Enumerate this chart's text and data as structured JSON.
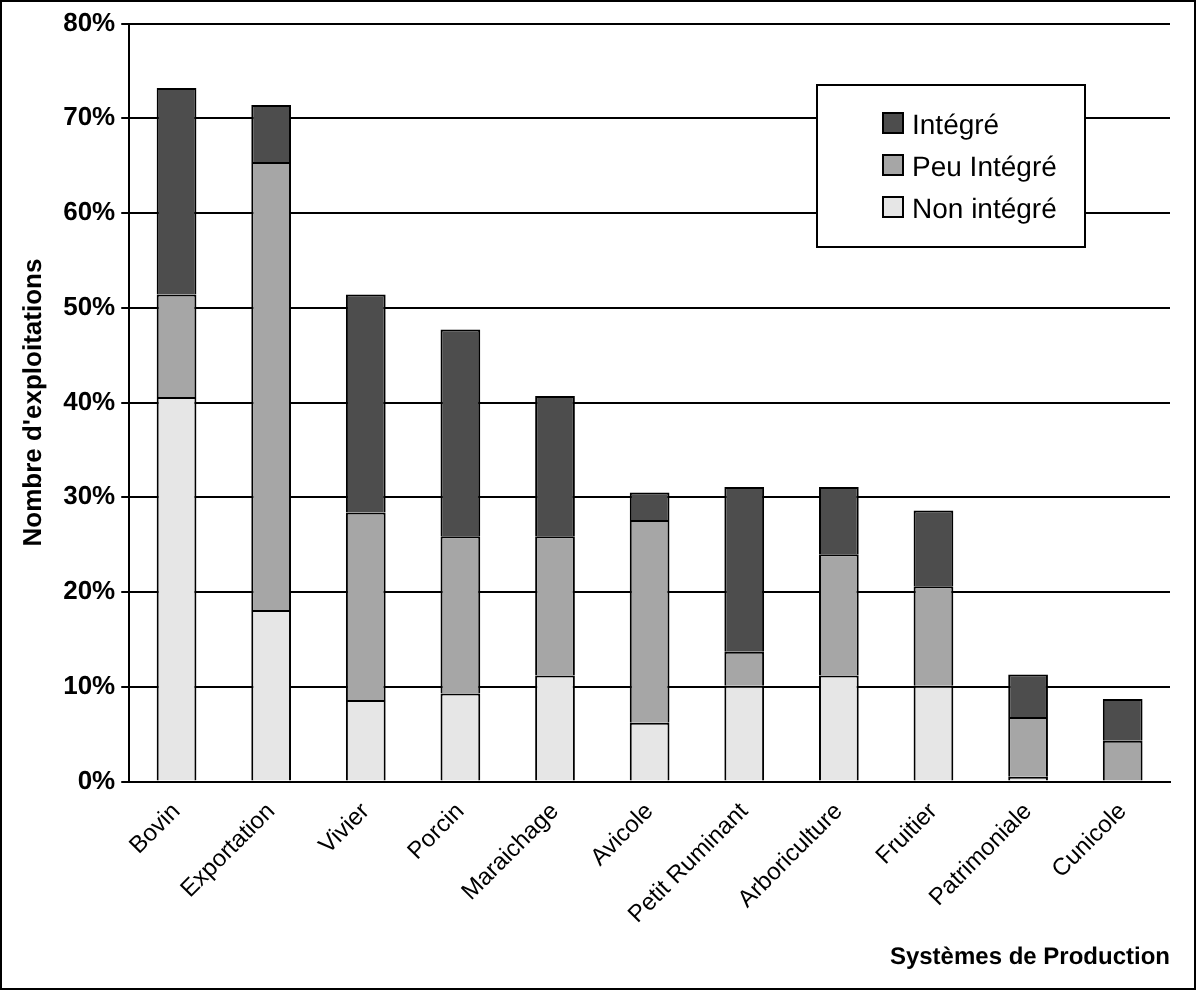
{
  "chart_data": {
    "type": "bar",
    "stacked": true,
    "xlabel": "Systèmes de Production",
    "ylabel": "Nombre d'exploitations",
    "categories": [
      "Bovin",
      "Exportation",
      "Vivier",
      "Porcin",
      "Maraichage",
      "Avicole",
      "Petit Ruminant",
      "Arboriculture",
      "Fruitier",
      "Patrimoniale",
      "Cunicole"
    ],
    "series": [
      {
        "name": "Non intégré",
        "color": "#e6e6e6",
        "values": [
          40.6,
          18.1,
          8.6,
          9.3,
          11.2,
          6.2,
          10.1,
          11.2,
          10.1,
          0.5,
          0
        ]
      },
      {
        "name": "Peu Intégré",
        "color": "#a6a6a6",
        "values": [
          10.8,
          47.3,
          19.8,
          16.6,
          14.7,
          21.4,
          3.6,
          12.8,
          10.5,
          6.3,
          4.3
        ]
      },
      {
        "name": "Intégré",
        "color": "#4d4d4d",
        "values": [
          21.8,
          6.0,
          23.0,
          21.8,
          14.8,
          2.9,
          17.4,
          7.1,
          8.0,
          4.5,
          4.4
        ]
      }
    ],
    "ylim": [
      0,
      80
    ],
    "yticks": [
      {
        "value": 0,
        "label": "0%"
      },
      {
        "value": 10,
        "label": "10%"
      },
      {
        "value": 20,
        "label": "20%"
      },
      {
        "value": 30,
        "label": "30%"
      },
      {
        "value": 40,
        "label": "40%"
      },
      {
        "value": 50,
        "label": "50%"
      },
      {
        "value": 60,
        "label": "60%"
      },
      {
        "value": 70,
        "label": "70%"
      },
      {
        "value": 80,
        "label": "80%"
      }
    ],
    "grid": "y",
    "legend": "top right"
  }
}
